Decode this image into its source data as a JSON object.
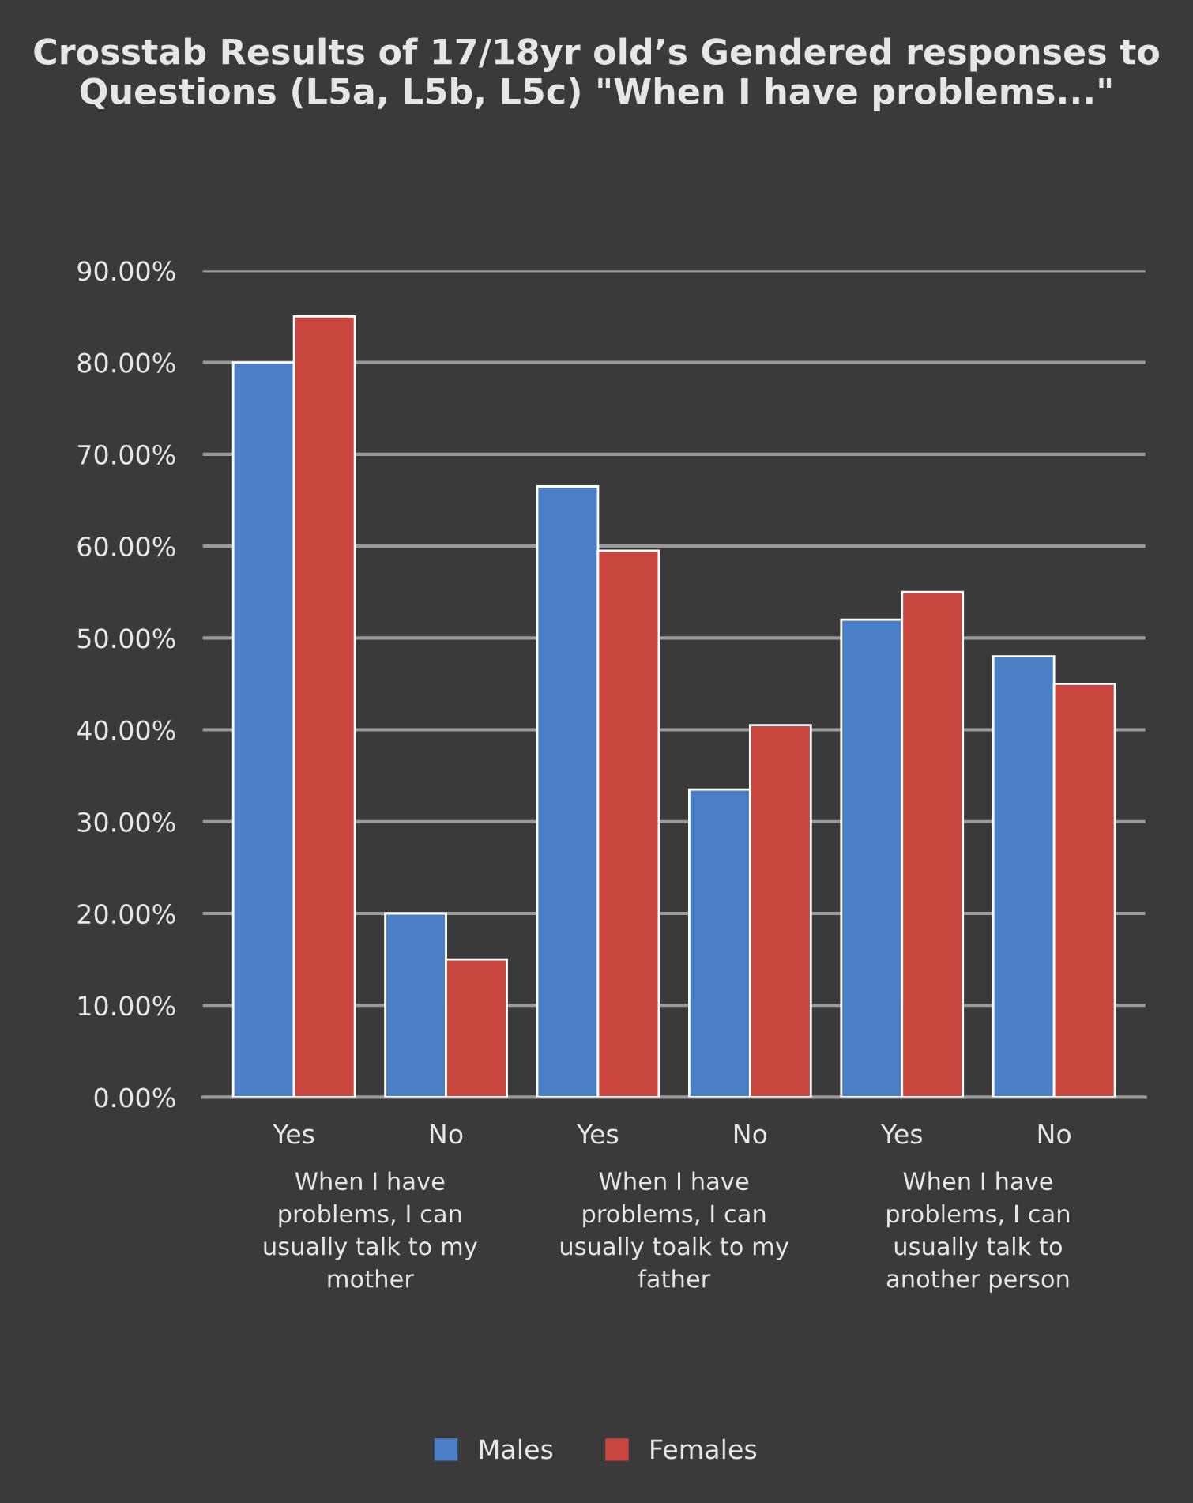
{
  "chart_data": {
    "type": "bar",
    "title": "Crosstab Results of 17/18yr old’s Gendered responses to Questions (L5a, L5b, L5c) \"When I have problems...\"",
    "categories": [
      "Yes",
      "No",
      "Yes",
      "No",
      "Yes",
      "No"
    ],
    "annotations": [
      "When I have problems, I can usually talk to my mother",
      "When I have problems, I can usually toalk to my father",
      "When I have problems, I can usually talk to another person"
    ],
    "series": [
      {
        "name": "Males",
        "color": "#4a7fc6",
        "values": [
          80,
          20,
          66.5,
          33.5,
          52,
          48
        ]
      },
      {
        "name": "Females",
        "color": "#c9463f",
        "values": [
          85,
          15,
          59.5,
          40.5,
          55,
          45
        ]
      }
    ],
    "ylim": [
      0,
      90
    ],
    "yticks": [
      {
        "value": 0,
        "label": "0.00%"
      },
      {
        "value": 10,
        "label": "10.00%"
      },
      {
        "value": 20,
        "label": "20.00%"
      },
      {
        "value": 30,
        "label": "30.00%"
      },
      {
        "value": 40,
        "label": "40.00%"
      },
      {
        "value": 50,
        "label": "50.00%"
      },
      {
        "value": 60,
        "label": "60.00%"
      },
      {
        "value": 70,
        "label": "70.00%"
      },
      {
        "value": 80,
        "label": "80.00%"
      },
      {
        "value": 90,
        "label": "90.00%"
      }
    ],
    "grid": "y",
    "legend": "bottom"
  }
}
